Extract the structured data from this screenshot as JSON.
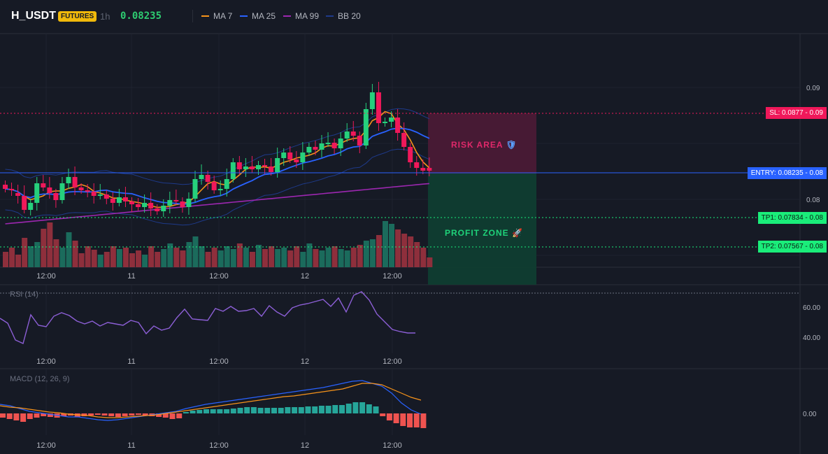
{
  "header": {
    "symbol": "H_USDT",
    "badge": "FUTURES",
    "timeframe": "1h",
    "price": "0.08235",
    "legend": [
      {
        "label": "MA 7",
        "color": "#f7931a"
      },
      {
        "label": "MA 25",
        "color": "#2962ff"
      },
      {
        "label": "MA 99",
        "color": "#9c27b0"
      },
      {
        "label": "BB 20",
        "color": "#1e3a8a"
      }
    ]
  },
  "price_axis": [
    "0.09",
    "0.08"
  ],
  "time_axis": [
    "12:00",
    "11",
    "12:00",
    "12",
    "12:00"
  ],
  "levels": {
    "sl": "SL: 0.0877",
    "sl_axis": "0.09",
    "entry": "ENTRY: 0.08235",
    "entry_axis": "0.08",
    "tp1": "TP1: 0.07834",
    "tp1_axis": "0.08",
    "tp2": "TP2: 0.07567",
    "tp2_axis": "0.08"
  },
  "zones": {
    "risk": "RISK AREA",
    "risk_icon": "🛡",
    "profit": "PROFIT ZONE",
    "profit_icon": "🚀"
  },
  "rsi": {
    "label": "RSI (14)",
    "axis": [
      "60.00",
      "40.00"
    ]
  },
  "macd": {
    "label": "MACD (12, 26, 9)",
    "axis": [
      "0.00"
    ]
  },
  "colors": {
    "up": "#26d07c",
    "down": "#f0185a",
    "ma7": "#f7931a",
    "ma25": "#2962ff",
    "ma99": "#9c27b0",
    "bb": "#1e3a8a",
    "rsi": "#8c5fd6",
    "sl": "#f0185a",
    "entry": "#2962ff",
    "tp": "#1aed7a"
  }
}
